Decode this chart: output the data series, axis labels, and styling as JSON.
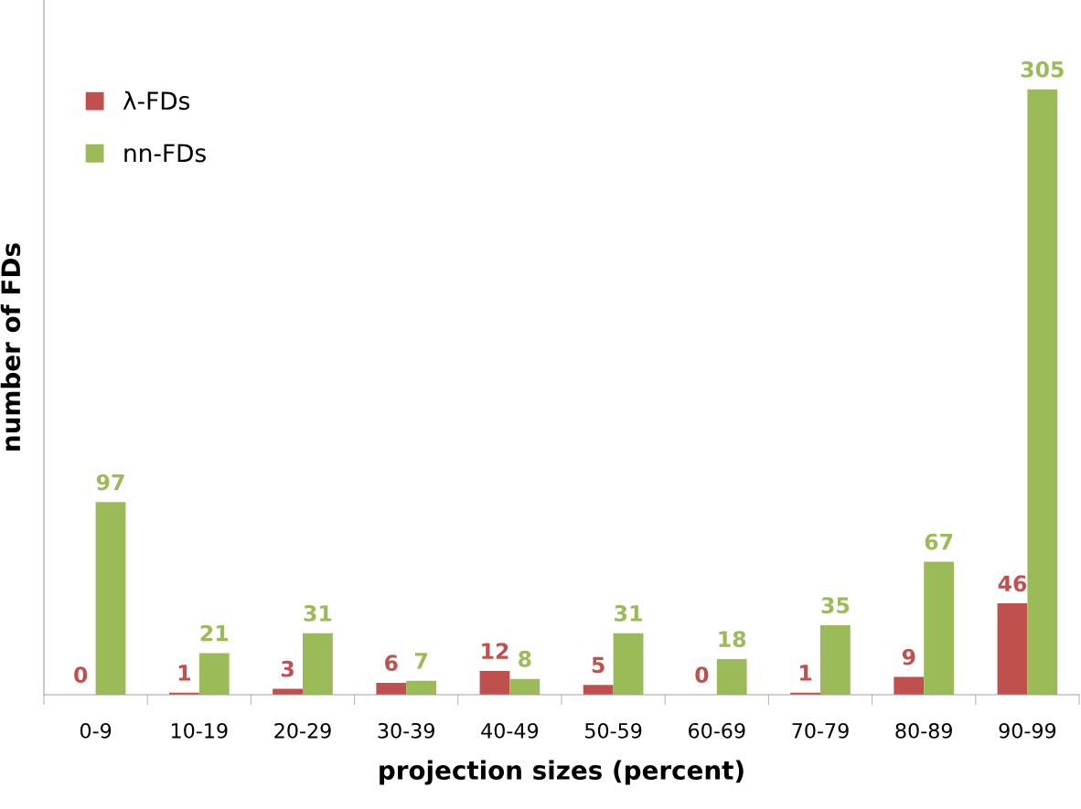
{
  "chart_data": {
    "type": "bar",
    "xlabel": "projection sizes (percent)",
    "ylabel": "number of FDs",
    "categories": [
      "0-9",
      "10-19",
      "20-29",
      "30-39",
      "40-49",
      "50-59",
      "60-69",
      "70-79",
      "80-89",
      "90-99"
    ],
    "series": [
      {
        "name": "λ-FDs",
        "color": "#c0504d",
        "values": [
          0,
          1,
          3,
          6,
          12,
          5,
          0,
          1,
          9,
          46
        ]
      },
      {
        "name": "nn-FDs",
        "color": "#9bbb59",
        "values": [
          97,
          21,
          31,
          7,
          8,
          31,
          18,
          35,
          67,
          305
        ]
      }
    ],
    "ylim": [
      0,
      350
    ],
    "data_labels": true,
    "legend": "top left",
    "tick_labels": "x"
  }
}
